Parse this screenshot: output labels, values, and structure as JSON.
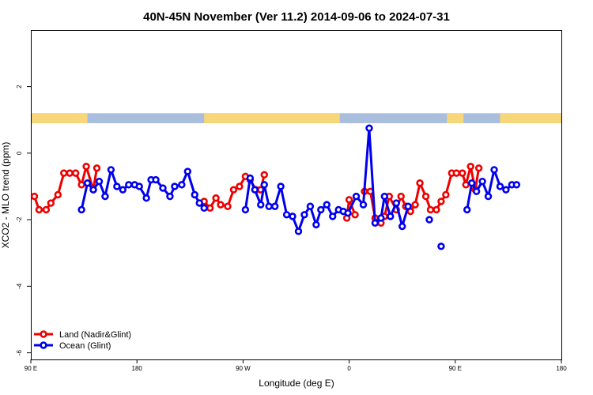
{
  "chart_data": {
    "type": "line",
    "title": "40N-45N November (Ver 11.2)   2014-09-06 to 2024-07-31",
    "xlabel": "Longitude (deg E)",
    "ylabel": "XCO2 - MLO trend (ppm)",
    "x_ticks": [
      {
        "value": 0,
        "label": "90 E"
      },
      {
        "value": 90,
        "label": "180"
      },
      {
        "value": 180,
        "label": "90 W"
      },
      {
        "value": 270,
        "label": "0"
      },
      {
        "value": 360,
        "label": "90 E"
      },
      {
        "value": 450,
        "label": "180"
      }
    ],
    "y_ticks": [
      {
        "value": 2,
        "label": "2"
      },
      {
        "value": 0,
        "label": "0"
      },
      {
        "value": -2,
        "label": "-2"
      },
      {
        "value": -4,
        "label": "-4"
      },
      {
        "value": -6,
        "label": "-6"
      }
    ],
    "xlim": [
      0,
      450
    ],
    "ylim": [
      -6.2,
      3.7
    ],
    "land_mask": {
      "y_range": [
        0.9,
        1.2
      ],
      "land_color": "#f8d77a",
      "ocean_color": "#a9bedd",
      "land_segments": [
        [
          0,
          48
        ],
        [
          147,
          262
        ],
        [
          353,
          367
        ],
        [
          398,
          450
        ]
      ]
    },
    "legend_position": "bottom-left",
    "series": [
      {
        "name": "Land (Nadir&Glint)",
        "color": "#ee0000",
        "segments": [
          [
            [
              3,
              -1.3
            ],
            [
              7,
              -1.7
            ],
            [
              13,
              -1.7
            ],
            [
              17,
              -1.5
            ],
            [
              23,
              -1.25
            ],
            [
              28,
              -0.6
            ],
            [
              33,
              -0.6
            ],
            [
              38,
              -0.6
            ],
            [
              43,
              -0.95
            ],
            [
              47,
              -0.4
            ],
            [
              53,
              -1.1
            ],
            [
              56,
              -0.45
            ]
          ],
          [
            [
              147,
              -1.45
            ],
            [
              152,
              -1.65
            ],
            [
              157,
              -1.35
            ],
            [
              161,
              -1.55
            ],
            [
              167,
              -1.6
            ],
            [
              172,
              -1.1
            ],
            [
              177,
              -1.0
            ],
            [
              182,
              -0.7
            ],
            [
              186,
              -0.8
            ],
            [
              191,
              -1.1
            ],
            [
              195,
              -1.1
            ],
            [
              198,
              -0.65
            ]
          ],
          [
            [
              268,
              -1.95
            ],
            [
              270,
              -1.4
            ],
            [
              275,
              -1.85
            ]
          ],
          [
            [
              283,
              -1.15
            ],
            [
              288,
              -1.15
            ],
            [
              292,
              -1.95
            ],
            [
              297,
              -2.1
            ],
            [
              300,
              -1.9
            ],
            [
              304,
              -1.3
            ],
            [
              310,
              -1.7
            ],
            [
              314,
              -1.3
            ],
            [
              318,
              -1.6
            ],
            [
              322,
              -1.75
            ],
            [
              326,
              -1.55
            ],
            [
              330,
              -0.9
            ],
            [
              335,
              -1.3
            ],
            [
              339,
              -1.7
            ],
            [
              344,
              -1.7
            ],
            [
              348,
              -1.45
            ],
            [
              352,
              -1.25
            ],
            [
              357,
              -0.6
            ],
            [
              361,
              -0.6
            ],
            [
              366,
              -0.6
            ],
            [
              369,
              -0.95
            ],
            [
              373,
              -0.4
            ],
            [
              377,
              -1.1
            ],
            [
              380,
              -0.45
            ]
          ]
        ]
      },
      {
        "name": "Ocean (Glint)",
        "color": "#0000ee",
        "segments": [
          [
            [
              43,
              -1.7
            ],
            [
              48,
              -0.9
            ],
            [
              53,
              -1.1
            ],
            [
              58,
              -0.85
            ],
            [
              63,
              -1.3
            ],
            [
              68,
              -0.5
            ],
            [
              73,
              -1.0
            ],
            [
              78,
              -1.1
            ],
            [
              83,
              -0.95
            ],
            [
              88,
              -0.95
            ],
            [
              92,
              -1.0
            ],
            [
              98,
              -1.35
            ],
            [
              102,
              -0.8
            ],
            [
              106,
              -0.8
            ],
            [
              112,
              -1.05
            ],
            [
              118,
              -1.3
            ],
            [
              122,
              -1.0
            ],
            [
              128,
              -0.95
            ],
            [
              133,
              -0.55
            ],
            [
              139,
              -1.25
            ],
            [
              143,
              -1.5
            ],
            [
              147,
              -1.65
            ]
          ],
          [
            [
              182,
              -1.7
            ],
            [
              186,
              -0.75
            ],
            [
              190,
              -1.1
            ],
            [
              195,
              -1.55
            ],
            [
              198,
              -0.95
            ],
            [
              202,
              -1.6
            ],
            [
              207,
              -1.6
            ],
            [
              212,
              -1.0
            ],
            [
              217,
              -1.85
            ],
            [
              222,
              -1.9
            ],
            [
              227,
              -2.35
            ],
            [
              232,
              -1.85
            ],
            [
              237,
              -1.6
            ],
            [
              242,
              -2.15
            ],
            [
              246,
              -1.7
            ],
            [
              251,
              -1.55
            ],
            [
              256,
              -1.9
            ],
            [
              261,
              -1.7
            ],
            [
              265,
              -1.75
            ],
            [
              269,
              -1.8
            ],
            [
              276,
              -1.3
            ],
            [
              282,
              -1.55
            ],
            [
              287,
              0.75
            ],
            [
              292,
              -2.1
            ],
            [
              297,
              -1.95
            ],
            [
              300,
              -1.3
            ],
            [
              305,
              -1.9
            ],
            [
              310,
              -1.5
            ],
            [
              315,
              -2.2
            ],
            [
              320,
              -1.6
            ]
          ],
          [
            [
              338,
              -2.0
            ]
          ],
          [
            [
              348,
              -2.8
            ]
          ],
          [
            [
              370,
              -1.7
            ],
            [
              374,
              -0.9
            ],
            [
              378,
              -1.15
            ],
            [
              383,
              -0.85
            ],
            [
              388,
              -1.3
            ],
            [
              393,
              -0.5
            ],
            [
              398,
              -1.0
            ],
            [
              403,
              -1.1
            ],
            [
              408,
              -0.95
            ],
            [
              412,
              -0.95
            ]
          ]
        ]
      }
    ]
  }
}
